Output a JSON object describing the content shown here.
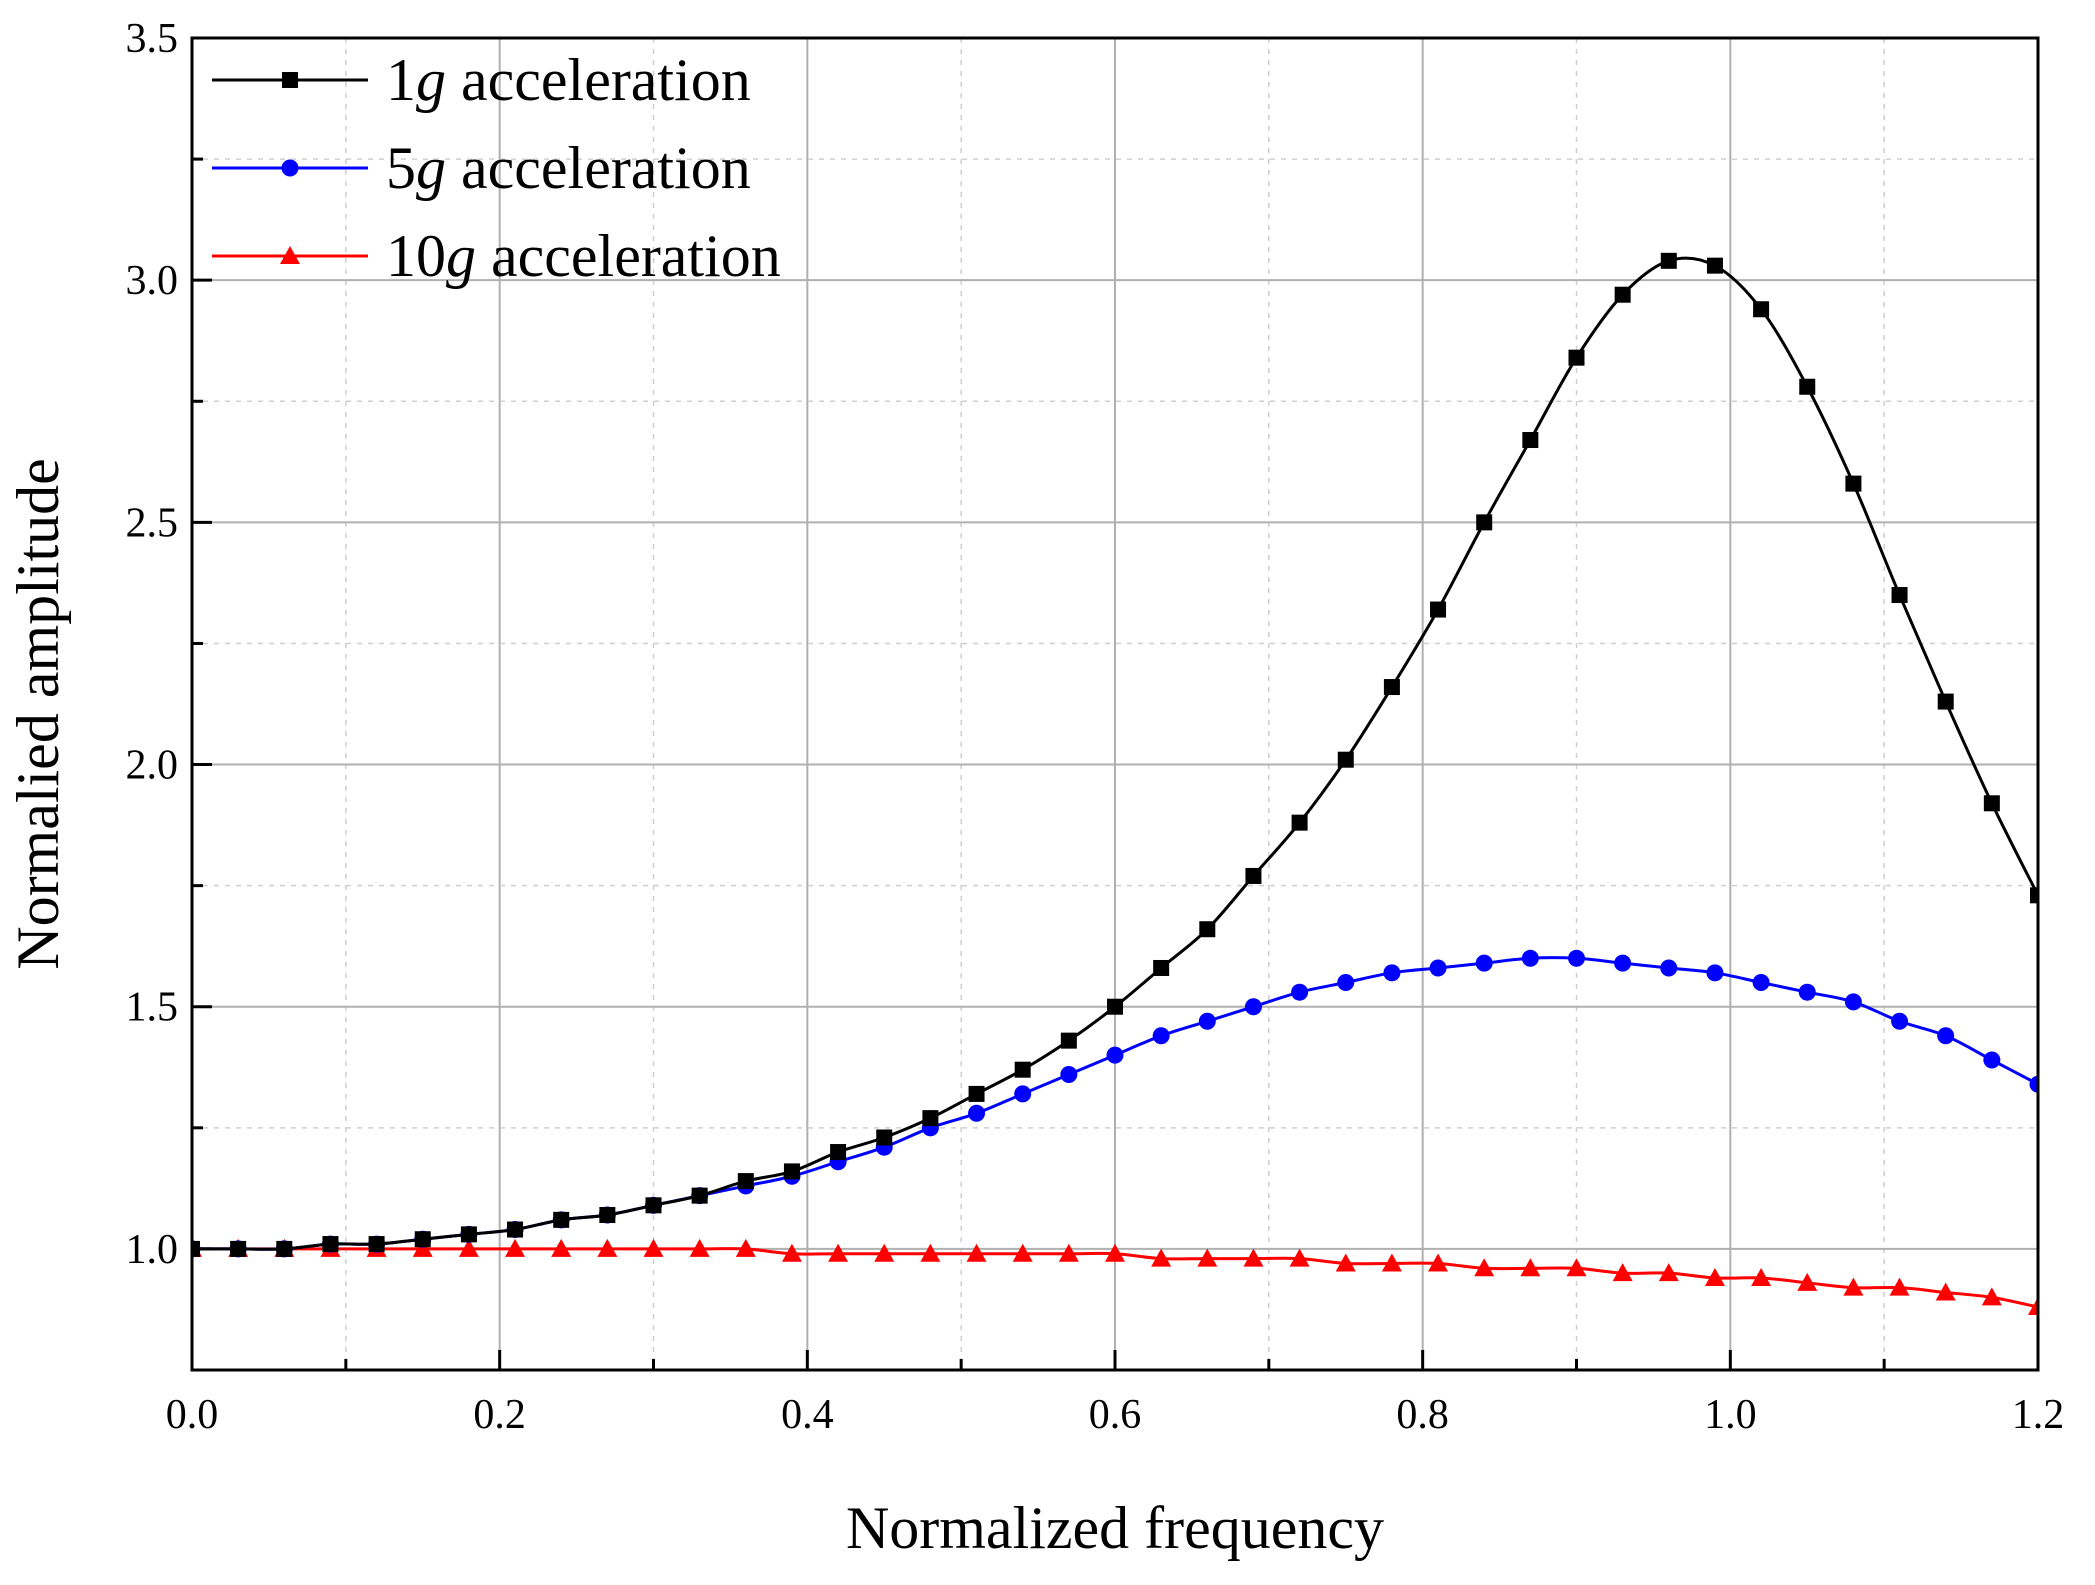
{
  "chart_data": {
    "type": "line",
    "title": "",
    "xlabel": "Normalized frequency",
    "ylabel": "Normalied amplitude",
    "xlim": [
      0.0,
      1.2
    ],
    "ylim": [
      0.75,
      3.5
    ],
    "x_ticks": [
      "0.0",
      "0.2",
      "0.4",
      "0.6",
      "0.8",
      "1.0",
      "1.2"
    ],
    "y_ticks": [
      "1.0",
      "1.5",
      "2.0",
      "2.5",
      "3.0",
      "3.5"
    ],
    "grid": true,
    "legend_position": "top-left",
    "x": [
      0.0,
      0.03,
      0.06,
      0.09,
      0.12,
      0.15,
      0.18,
      0.21,
      0.24,
      0.27,
      0.3,
      0.33,
      0.36,
      0.39,
      0.42,
      0.45,
      0.48,
      0.51,
      0.54,
      0.57,
      0.6,
      0.63,
      0.66,
      0.69,
      0.72,
      0.75,
      0.78,
      0.81,
      0.84,
      0.87,
      0.9,
      0.93,
      0.96,
      0.99,
      1.02,
      1.05,
      1.08,
      1.11,
      1.14,
      1.17,
      1.2
    ],
    "series": [
      {
        "name": "1g acceleration",
        "legend_prefix": "1",
        "legend_italic": "g",
        "legend_suffix": " acceleration",
        "color": "#000000",
        "marker": "square",
        "values": [
          1.0,
          1.0,
          1.0,
          1.01,
          1.01,
          1.02,
          1.03,
          1.04,
          1.06,
          1.07,
          1.09,
          1.11,
          1.14,
          1.16,
          1.2,
          1.23,
          1.27,
          1.32,
          1.37,
          1.43,
          1.5,
          1.58,
          1.66,
          1.77,
          1.88,
          2.01,
          2.16,
          2.32,
          2.5,
          2.67,
          2.84,
          2.97,
          3.04,
          3.03,
          2.94,
          2.78,
          2.58,
          2.35,
          2.13,
          1.92,
          1.73
        ]
      },
      {
        "name": "5g acceleration",
        "legend_prefix": "5",
        "legend_italic": "g",
        "legend_suffix": " acceleration",
        "color": "#0000ff",
        "marker": "circle",
        "values": [
          1.0,
          1.0,
          1.0,
          1.01,
          1.01,
          1.02,
          1.03,
          1.04,
          1.06,
          1.07,
          1.09,
          1.11,
          1.13,
          1.15,
          1.18,
          1.21,
          1.25,
          1.28,
          1.32,
          1.36,
          1.4,
          1.44,
          1.47,
          1.5,
          1.53,
          1.55,
          1.57,
          1.58,
          1.59,
          1.6,
          1.6,
          1.59,
          1.58,
          1.57,
          1.55,
          1.53,
          1.51,
          1.47,
          1.44,
          1.39,
          1.34
        ]
      },
      {
        "name": "10g acceleration",
        "legend_prefix": "10",
        "legend_italic": "g",
        "legend_suffix": " acceleration",
        "color": "#ff0000",
        "marker": "triangle",
        "values": [
          1.0,
          1.0,
          1.0,
          1.0,
          1.0,
          1.0,
          1.0,
          1.0,
          1.0,
          1.0,
          1.0,
          1.0,
          1.0,
          0.99,
          0.99,
          0.99,
          0.99,
          0.99,
          0.99,
          0.99,
          0.99,
          0.98,
          0.98,
          0.98,
          0.98,
          0.97,
          0.97,
          0.97,
          0.96,
          0.96,
          0.96,
          0.95,
          0.95,
          0.94,
          0.94,
          0.93,
          0.92,
          0.92,
          0.91,
          0.9,
          0.88
        ]
      }
    ]
  }
}
